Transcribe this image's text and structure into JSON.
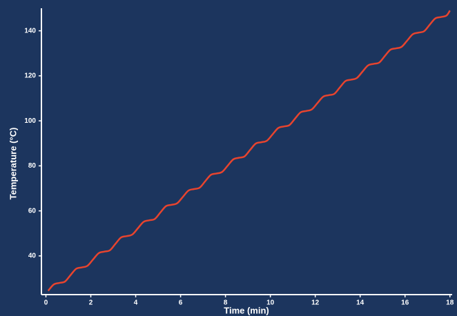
{
  "chart_data": {
    "type": "line",
    "x_label": "Time (min)",
    "y_label": "Temperature (°C)",
    "x": [
      0.1,
      0.35,
      0.6,
      0.85,
      1.1,
      1.35,
      1.6,
      1.85,
      2.1,
      2.35,
      2.6,
      2.85,
      3.1,
      3.35,
      3.6,
      3.85,
      4.1,
      4.35,
      4.6,
      4.85,
      5.1,
      5.35,
      5.6,
      5.85,
      6.1,
      6.35,
      6.6,
      6.85,
      7.1,
      7.35,
      7.6,
      7.85,
      8.1,
      8.35,
      8.6,
      8.85,
      9.1,
      9.35,
      9.6,
      9.85,
      10.1,
      10.35,
      10.6,
      10.85,
      11.1,
      11.35,
      11.6,
      11.85,
      12.1,
      12.35,
      12.6,
      12.85,
      13.1,
      13.35,
      13.6,
      13.85,
      14.1,
      14.35,
      14.6,
      14.85,
      15.1,
      15.35,
      15.6,
      15.85,
      16.1,
      16.35,
      16.6,
      16.85,
      17.1,
      17.35,
      17.6,
      17.85,
      18.0
    ],
    "series": [
      {
        "name": "Temperature",
        "color": "#e8442e",
        "values": [
          24.5,
          27.3,
          28.0,
          28.6,
          31.5,
          34.3,
          34.9,
          35.6,
          38.4,
          41.2,
          41.9,
          42.5,
          45.4,
          48.2,
          48.8,
          49.5,
          52.3,
          55.1,
          55.8,
          56.4,
          59.3,
          62.1,
          62.7,
          63.4,
          66.2,
          69.0,
          69.7,
          70.3,
          73.2,
          76.0,
          76.6,
          77.3,
          80.1,
          82.9,
          83.6,
          84.2,
          87.1,
          89.9,
          90.5,
          91.2,
          94.0,
          96.8,
          97.5,
          98.1,
          101.0,
          103.8,
          104.4,
          105.1,
          107.9,
          110.7,
          111.4,
          112.0,
          114.9,
          117.7,
          118.3,
          119.0,
          121.8,
          124.6,
          125.3,
          125.9,
          128.8,
          131.6,
          132.2,
          132.9,
          135.7,
          138.5,
          139.2,
          139.8,
          142.7,
          145.5,
          146.1,
          146.8,
          149.0
        ]
      }
    ],
    "xlim": [
      -0.2,
      18.1
    ],
    "xticks": [
      0,
      2,
      4,
      6,
      8,
      10,
      12,
      14,
      16,
      18
    ],
    "ylim": [
      22.8,
      150
    ],
    "yticks": [
      40,
      60,
      80,
      100,
      120,
      140
    ],
    "grid": false
  }
}
